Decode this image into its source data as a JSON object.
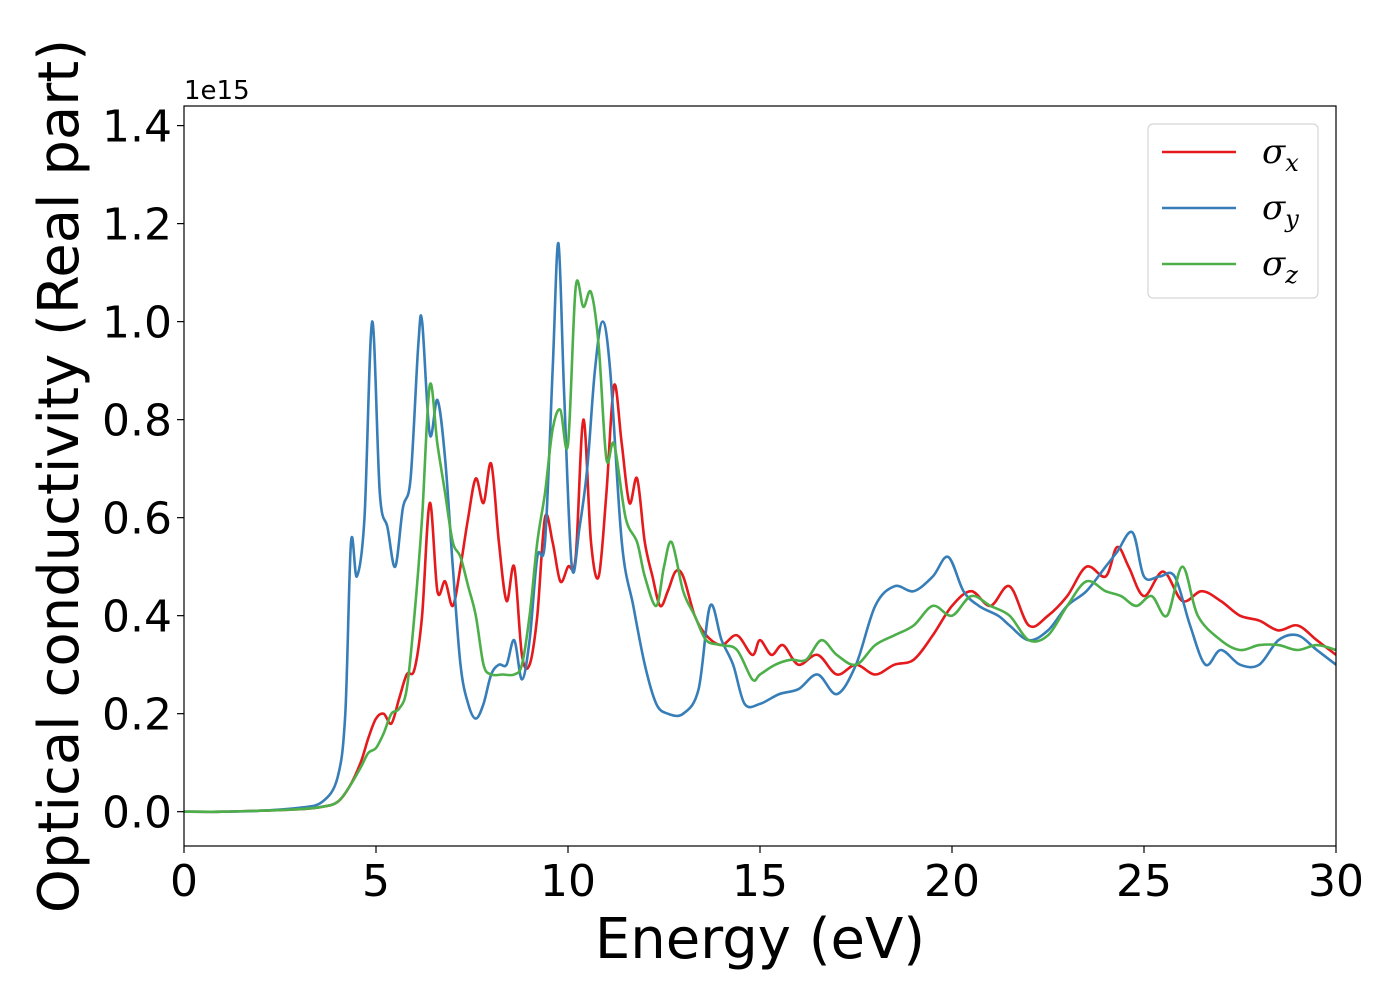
{
  "chart_data": {
    "type": "line",
    "xlabel": "Energy (eV)",
    "ylabel": "Optical conductivity (Real part)",
    "y_offset_label": "1e15",
    "xlim": [
      0,
      30
    ],
    "ylim": [
      -0.07,
      1.44
    ],
    "x_ticks": [
      0,
      5,
      10,
      15,
      20,
      25,
      30
    ],
    "x_tick_labels": [
      "0",
      "5",
      "10",
      "15",
      "20",
      "25",
      "30"
    ],
    "y_ticks": [
      0.0,
      0.2,
      0.4,
      0.6,
      0.8,
      1.0,
      1.2,
      1.4
    ],
    "y_tick_labels": [
      "0.0",
      "0.2",
      "0.4",
      "0.6",
      "0.8",
      "1.0",
      "1.2",
      "1.4"
    ],
    "grid": false,
    "legend_position": "top-right",
    "series": [
      {
        "name": "σ",
        "subscript": "x",
        "color": "#e41a1c",
        "points": [
          [
            0,
            0
          ],
          [
            1,
            0
          ],
          [
            2,
            0.002
          ],
          [
            3,
            0.005
          ],
          [
            3.6,
            0.01
          ],
          [
            4,
            0.02
          ],
          [
            4.3,
            0.05
          ],
          [
            4.6,
            0.1
          ],
          [
            4.8,
            0.15
          ],
          [
            5,
            0.19
          ],
          [
            5.2,
            0.2
          ],
          [
            5.4,
            0.18
          ],
          [
            5.6,
            0.23
          ],
          [
            5.8,
            0.28
          ],
          [
            6,
            0.29
          ],
          [
            6.2,
            0.4
          ],
          [
            6.4,
            0.63
          ],
          [
            6.6,
            0.45
          ],
          [
            6.8,
            0.47
          ],
          [
            7,
            0.42
          ],
          [
            7.2,
            0.5
          ],
          [
            7.4,
            0.6
          ],
          [
            7.6,
            0.68
          ],
          [
            7.8,
            0.63
          ],
          [
            8,
            0.71
          ],
          [
            8.2,
            0.55
          ],
          [
            8.4,
            0.43
          ],
          [
            8.6,
            0.5
          ],
          [
            8.8,
            0.32
          ],
          [
            9,
            0.3
          ],
          [
            9.2,
            0.4
          ],
          [
            9.4,
            0.6
          ],
          [
            9.6,
            0.55
          ],
          [
            9.8,
            0.47
          ],
          [
            10,
            0.5
          ],
          [
            10.2,
            0.52
          ],
          [
            10.4,
            0.8
          ],
          [
            10.6,
            0.55
          ],
          [
            10.8,
            0.48
          ],
          [
            11,
            0.65
          ],
          [
            11.2,
            0.87
          ],
          [
            11.4,
            0.75
          ],
          [
            11.6,
            0.63
          ],
          [
            11.8,
            0.68
          ],
          [
            12,
            0.55
          ],
          [
            12.2,
            0.48
          ],
          [
            12.4,
            0.42
          ],
          [
            12.6,
            0.45
          ],
          [
            12.8,
            0.49
          ],
          [
            13,
            0.48
          ],
          [
            13.3,
            0.4
          ],
          [
            13.6,
            0.36
          ],
          [
            14,
            0.34
          ],
          [
            14.4,
            0.36
          ],
          [
            14.8,
            0.32
          ],
          [
            15,
            0.35
          ],
          [
            15.3,
            0.32
          ],
          [
            15.6,
            0.34
          ],
          [
            16,
            0.3
          ],
          [
            16.5,
            0.32
          ],
          [
            17,
            0.28
          ],
          [
            17.5,
            0.3
          ],
          [
            18,
            0.28
          ],
          [
            18.5,
            0.3
          ],
          [
            19,
            0.31
          ],
          [
            19.5,
            0.36
          ],
          [
            20,
            0.42
          ],
          [
            20.5,
            0.45
          ],
          [
            21,
            0.42
          ],
          [
            21.5,
            0.46
          ],
          [
            22,
            0.38
          ],
          [
            22.5,
            0.4
          ],
          [
            23,
            0.44
          ],
          [
            23.5,
            0.5
          ],
          [
            24,
            0.48
          ],
          [
            24.3,
            0.54
          ],
          [
            24.6,
            0.5
          ],
          [
            25,
            0.44
          ],
          [
            25.5,
            0.49
          ],
          [
            26,
            0.43
          ],
          [
            26.5,
            0.45
          ],
          [
            27,
            0.43
          ],
          [
            27.5,
            0.4
          ],
          [
            28,
            0.39
          ],
          [
            28.5,
            0.37
          ],
          [
            29,
            0.38
          ],
          [
            29.5,
            0.35
          ],
          [
            30,
            0.32
          ]
        ]
      },
      {
        "name": "σ",
        "subscript": "y",
        "color": "#377eb8",
        "points": [
          [
            0,
            0
          ],
          [
            1,
            0
          ],
          [
            2,
            0.002
          ],
          [
            3,
            0.008
          ],
          [
            3.6,
            0.02
          ],
          [
            4,
            0.07
          ],
          [
            4.2,
            0.2
          ],
          [
            4.35,
            0.55
          ],
          [
            4.5,
            0.48
          ],
          [
            4.7,
            0.6
          ],
          [
            4.9,
            1.0
          ],
          [
            5.1,
            0.65
          ],
          [
            5.3,
            0.58
          ],
          [
            5.5,
            0.5
          ],
          [
            5.7,
            0.62
          ],
          [
            5.9,
            0.68
          ],
          [
            6.1,
            0.95
          ],
          [
            6.2,
            1.0
          ],
          [
            6.4,
            0.77
          ],
          [
            6.6,
            0.84
          ],
          [
            6.8,
            0.72
          ],
          [
            7,
            0.5
          ],
          [
            7.2,
            0.3
          ],
          [
            7.4,
            0.22
          ],
          [
            7.6,
            0.19
          ],
          [
            7.8,
            0.22
          ],
          [
            8,
            0.28
          ],
          [
            8.2,
            0.3
          ],
          [
            8.4,
            0.3
          ],
          [
            8.6,
            0.35
          ],
          [
            8.8,
            0.27
          ],
          [
            9,
            0.35
          ],
          [
            9.2,
            0.52
          ],
          [
            9.4,
            0.55
          ],
          [
            9.6,
            0.9
          ],
          [
            9.75,
            1.16
          ],
          [
            9.9,
            0.85
          ],
          [
            10.1,
            0.5
          ],
          [
            10.3,
            0.58
          ],
          [
            10.5,
            0.7
          ],
          [
            10.7,
            0.9
          ],
          [
            10.9,
            1.0
          ],
          [
            11.1,
            0.9
          ],
          [
            11.4,
            0.55
          ],
          [
            11.7,
            0.42
          ],
          [
            12,
            0.3
          ],
          [
            12.3,
            0.22
          ],
          [
            12.6,
            0.2
          ],
          [
            13,
            0.2
          ],
          [
            13.4,
            0.25
          ],
          [
            13.7,
            0.42
          ],
          [
            14,
            0.35
          ],
          [
            14.3,
            0.3
          ],
          [
            14.6,
            0.22
          ],
          [
            15,
            0.22
          ],
          [
            15.5,
            0.24
          ],
          [
            16,
            0.25
          ],
          [
            16.5,
            0.28
          ],
          [
            17,
            0.24
          ],
          [
            17.5,
            0.3
          ],
          [
            18,
            0.42
          ],
          [
            18.5,
            0.46
          ],
          [
            19,
            0.45
          ],
          [
            19.5,
            0.48
          ],
          [
            19.9,
            0.52
          ],
          [
            20.3,
            0.45
          ],
          [
            20.7,
            0.42
          ],
          [
            21.2,
            0.4
          ],
          [
            21.5,
            0.38
          ],
          [
            22,
            0.35
          ],
          [
            22.5,
            0.37
          ],
          [
            23,
            0.42
          ],
          [
            23.5,
            0.45
          ],
          [
            24,
            0.5
          ],
          [
            24.3,
            0.53
          ],
          [
            24.7,
            0.57
          ],
          [
            25,
            0.48
          ],
          [
            25.4,
            0.48
          ],
          [
            25.8,
            0.48
          ],
          [
            26.2,
            0.38
          ],
          [
            26.6,
            0.3
          ],
          [
            27,
            0.33
          ],
          [
            27.5,
            0.3
          ],
          [
            28,
            0.3
          ],
          [
            28.5,
            0.35
          ],
          [
            29,
            0.36
          ],
          [
            29.5,
            0.33
          ],
          [
            30,
            0.3
          ]
        ]
      },
      {
        "name": "σ",
        "subscript": "z",
        "color": "#4daf4a",
        "points": [
          [
            0,
            0
          ],
          [
            1,
            0
          ],
          [
            2,
            0.002
          ],
          [
            3,
            0.005
          ],
          [
            3.6,
            0.01
          ],
          [
            4,
            0.02
          ],
          [
            4.3,
            0.05
          ],
          [
            4.6,
            0.09
          ],
          [
            4.8,
            0.12
          ],
          [
            5,
            0.13
          ],
          [
            5.2,
            0.16
          ],
          [
            5.4,
            0.2
          ],
          [
            5.6,
            0.21
          ],
          [
            5.8,
            0.25
          ],
          [
            6,
            0.4
          ],
          [
            6.2,
            0.6
          ],
          [
            6.4,
            0.87
          ],
          [
            6.6,
            0.75
          ],
          [
            6.8,
            0.65
          ],
          [
            7,
            0.55
          ],
          [
            7.2,
            0.52
          ],
          [
            7.4,
            0.46
          ],
          [
            7.6,
            0.4
          ],
          [
            7.8,
            0.3
          ],
          [
            8,
            0.28
          ],
          [
            8.3,
            0.28
          ],
          [
            8.6,
            0.28
          ],
          [
            8.8,
            0.3
          ],
          [
            9,
            0.4
          ],
          [
            9.2,
            0.55
          ],
          [
            9.4,
            0.65
          ],
          [
            9.6,
            0.78
          ],
          [
            9.8,
            0.82
          ],
          [
            10,
            0.75
          ],
          [
            10.2,
            1.07
          ],
          [
            10.4,
            1.03
          ],
          [
            10.6,
            1.06
          ],
          [
            10.8,
            0.95
          ],
          [
            11,
            0.72
          ],
          [
            11.2,
            0.75
          ],
          [
            11.5,
            0.6
          ],
          [
            11.8,
            0.55
          ],
          [
            12,
            0.48
          ],
          [
            12.3,
            0.42
          ],
          [
            12.5,
            0.5
          ],
          [
            12.7,
            0.55
          ],
          [
            13,
            0.45
          ],
          [
            13.3,
            0.4
          ],
          [
            13.6,
            0.35
          ],
          [
            14,
            0.34
          ],
          [
            14.4,
            0.33
          ],
          [
            14.8,
            0.27
          ],
          [
            15,
            0.28
          ],
          [
            15.4,
            0.3
          ],
          [
            15.8,
            0.31
          ],
          [
            16.2,
            0.31
          ],
          [
            16.6,
            0.35
          ],
          [
            17,
            0.32
          ],
          [
            17.5,
            0.3
          ],
          [
            18,
            0.34
          ],
          [
            18.5,
            0.36
          ],
          [
            19,
            0.38
          ],
          [
            19.5,
            0.42
          ],
          [
            20,
            0.4
          ],
          [
            20.5,
            0.44
          ],
          [
            21,
            0.42
          ],
          [
            21.5,
            0.4
          ],
          [
            22,
            0.35
          ],
          [
            22.5,
            0.36
          ],
          [
            23,
            0.42
          ],
          [
            23.5,
            0.47
          ],
          [
            24,
            0.45
          ],
          [
            24.4,
            0.44
          ],
          [
            24.8,
            0.42
          ],
          [
            25.2,
            0.44
          ],
          [
            25.6,
            0.4
          ],
          [
            26,
            0.5
          ],
          [
            26.4,
            0.4
          ],
          [
            27,
            0.35
          ],
          [
            27.5,
            0.33
          ],
          [
            28,
            0.34
          ],
          [
            28.5,
            0.34
          ],
          [
            29,
            0.33
          ],
          [
            29.5,
            0.34
          ],
          [
            30,
            0.33
          ]
        ]
      }
    ]
  }
}
